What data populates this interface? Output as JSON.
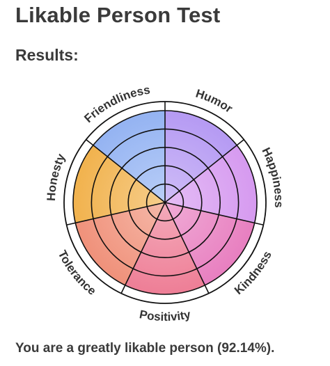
{
  "title": "Likable Person Test",
  "results_label": "Results:",
  "summary": "You are a greatly likable person (92.14%).",
  "chart_data": {
    "type": "radial",
    "rings": 5,
    "categories": [
      {
        "name": "Humor",
        "level": 5,
        "color": "#b59af3"
      },
      {
        "name": "Happiness",
        "level": 5,
        "color": "#d69af0"
      },
      {
        "name": "Kindness",
        "level": 5,
        "color": "#e87fc0"
      },
      {
        "name": "Positivity",
        "level": 5,
        "color": "#ee7e96"
      },
      {
        "name": "Tolerance",
        "level": 5,
        "color": "#f0917a"
      },
      {
        "name": "Honesty",
        "level": 5,
        "color": "#f1b24d"
      },
      {
        "name": "Friendliness",
        "level": 5,
        "color": "#94b3f2"
      }
    ]
  }
}
